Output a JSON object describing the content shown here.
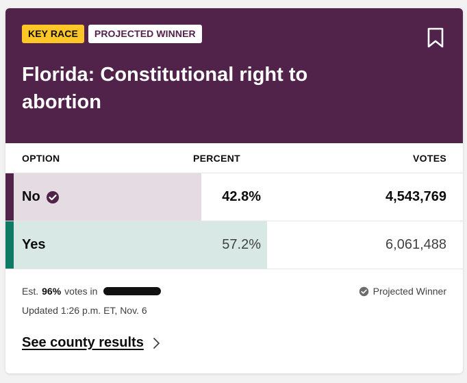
{
  "header": {
    "badges": {
      "key_race": "KEY RACE",
      "projected_winner": "PROJECTED WINNER"
    },
    "title": "Florida: Constitutional right to abortion",
    "bookmark_icon": "bookmark-icon"
  },
  "table": {
    "columns": {
      "option": "OPTION",
      "percent": "PERCENT",
      "votes": "VOTES"
    },
    "rows": [
      {
        "option": "No",
        "percent": "42.8%",
        "votes": "4,543,769",
        "winner": true,
        "color": "#52234a",
        "fill_color": "#e5dbe2",
        "percent_value": 42.8
      },
      {
        "option": "Yes",
        "percent": "57.2%",
        "votes": "6,061,488",
        "winner": false,
        "color": "#0f7b64",
        "fill_color": "#d8e9e5",
        "percent_value": 57.2
      }
    ]
  },
  "footer": {
    "est_prefix": "Est.",
    "est_value": "96%",
    "est_suffix": "votes in",
    "updated": "Updated 1:26 p.m. ET, Nov. 6",
    "legend": "Projected Winner",
    "county_link": "See county results"
  },
  "colors": {
    "header_bg": "#52234a",
    "key_badge": "#ffc627"
  }
}
